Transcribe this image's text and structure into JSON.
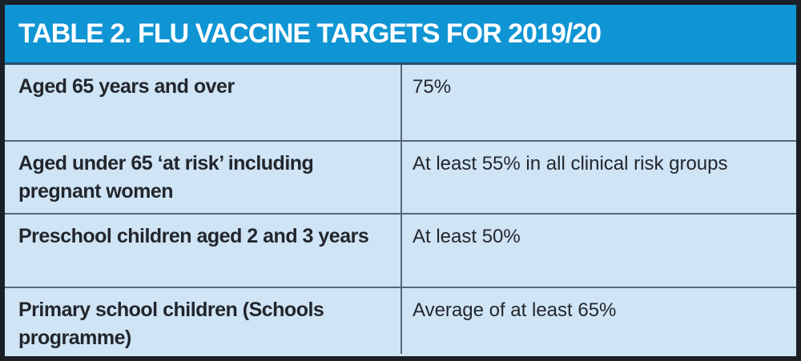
{
  "table": {
    "title": "TABLE 2. FLU VACCINE TARGETS FOR 2019/20",
    "rows": [
      {
        "category": "Aged 65 years and over",
        "target": "75%"
      },
      {
        "category": "Aged under 65 ‘at risk’ including pregnant women",
        "target": "At least 55% in all clinical risk groups"
      },
      {
        "category": "Preschool children aged 2 and 3 years",
        "target": "At least 50%"
      },
      {
        "category": "Primary school children (Schools programme)",
        "target": "Average of at least 65%"
      }
    ]
  },
  "colors": {
    "header_bg": "#1095d4",
    "body_bg": "#cfe4f5",
    "outer_border": "#1b1f26",
    "inner_divider": "#566876",
    "header_underline": "#24506b",
    "title_text": "#ffffff",
    "body_text": "#22262c"
  }
}
